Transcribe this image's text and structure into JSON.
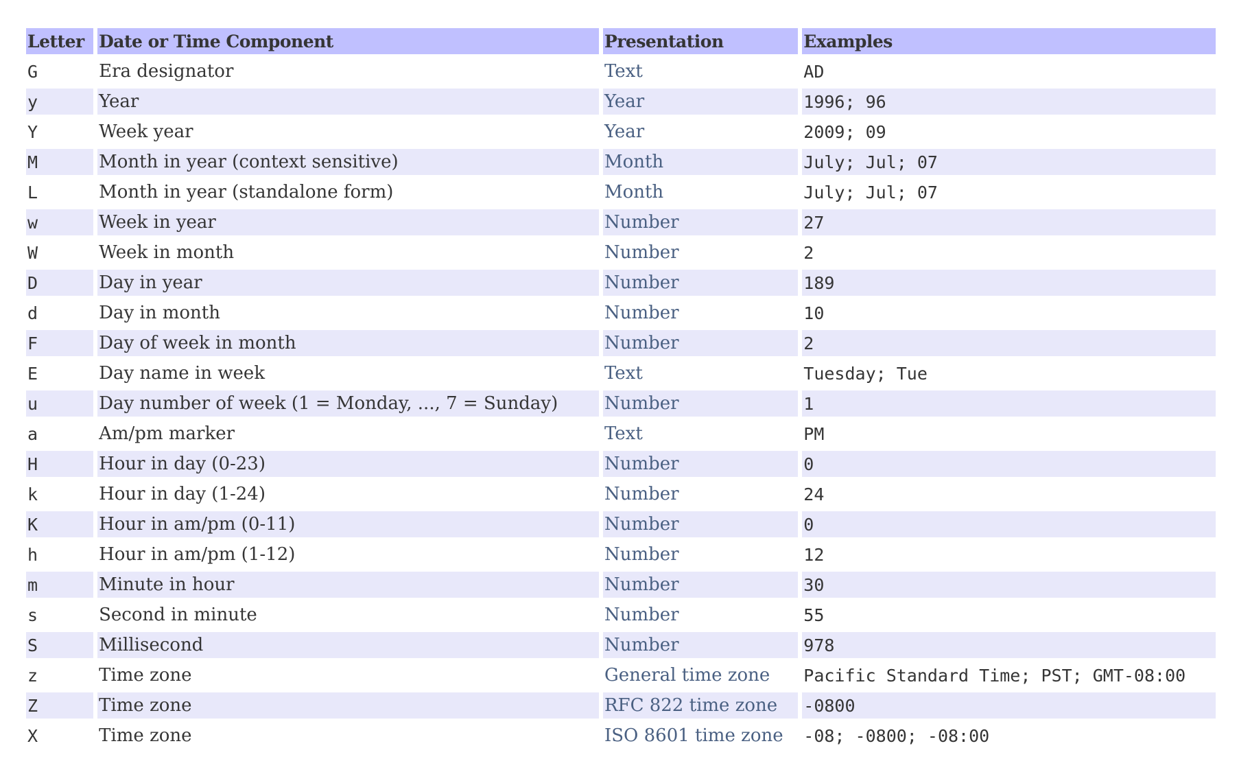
{
  "colors": {
    "header_bg": "#c0c0ff",
    "alt_row_bg": "#e8e8fa",
    "link": "#4a6082",
    "text": "#353535"
  },
  "table": {
    "headers": [
      "Letter",
      "Date or Time Component",
      "Presentation",
      "Examples"
    ],
    "rows": [
      {
        "letter": "G",
        "component": "Era designator",
        "presentation": "Text",
        "examples": "AD"
      },
      {
        "letter": "y",
        "component": "Year",
        "presentation": "Year",
        "examples": "1996; 96"
      },
      {
        "letter": "Y",
        "component": "Week year",
        "presentation": "Year",
        "examples": "2009; 09"
      },
      {
        "letter": "M",
        "component": "Month in year (context sensitive)",
        "presentation": "Month",
        "examples": "July; Jul; 07"
      },
      {
        "letter": "L",
        "component": "Month in year (standalone form)",
        "presentation": "Month",
        "examples": "July; Jul; 07"
      },
      {
        "letter": "w",
        "component": "Week in year",
        "presentation": "Number",
        "examples": "27"
      },
      {
        "letter": "W",
        "component": "Week in month",
        "presentation": "Number",
        "examples": "2"
      },
      {
        "letter": "D",
        "component": "Day in year",
        "presentation": "Number",
        "examples": "189"
      },
      {
        "letter": "d",
        "component": "Day in month",
        "presentation": "Number",
        "examples": "10"
      },
      {
        "letter": "F",
        "component": "Day of week in month",
        "presentation": "Number",
        "examples": "2"
      },
      {
        "letter": "E",
        "component": "Day name in week",
        "presentation": "Text",
        "examples": "Tuesday; Tue"
      },
      {
        "letter": "u",
        "component": "Day number of week (1 = Monday, ..., 7 = Sunday)",
        "presentation": "Number",
        "examples": "1"
      },
      {
        "letter": "a",
        "component": "Am/pm marker",
        "presentation": "Text",
        "examples": "PM"
      },
      {
        "letter": "H",
        "component": "Hour in day (0-23)",
        "presentation": "Number",
        "examples": "0"
      },
      {
        "letter": "k",
        "component": "Hour in day (1-24)",
        "presentation": "Number",
        "examples": "24"
      },
      {
        "letter": "K",
        "component": "Hour in am/pm (0-11)",
        "presentation": "Number",
        "examples": "0"
      },
      {
        "letter": "h",
        "component": "Hour in am/pm (1-12)",
        "presentation": "Number",
        "examples": "12"
      },
      {
        "letter": "m",
        "component": "Minute in hour",
        "presentation": "Number",
        "examples": "30"
      },
      {
        "letter": "s",
        "component": "Second in minute",
        "presentation": "Number",
        "examples": "55"
      },
      {
        "letter": "S",
        "component": "Millisecond",
        "presentation": "Number",
        "examples": "978"
      },
      {
        "letter": "z",
        "component": "Time zone",
        "presentation": "General time zone",
        "examples": "Pacific Standard Time; PST; GMT-08:00"
      },
      {
        "letter": "Z",
        "component": "Time zone",
        "presentation": "RFC 822 time zone",
        "examples": "-0800"
      },
      {
        "letter": "X",
        "component": "Time zone",
        "presentation": "ISO 8601 time zone",
        "examples": "-08; -0800; -08:00"
      }
    ]
  }
}
